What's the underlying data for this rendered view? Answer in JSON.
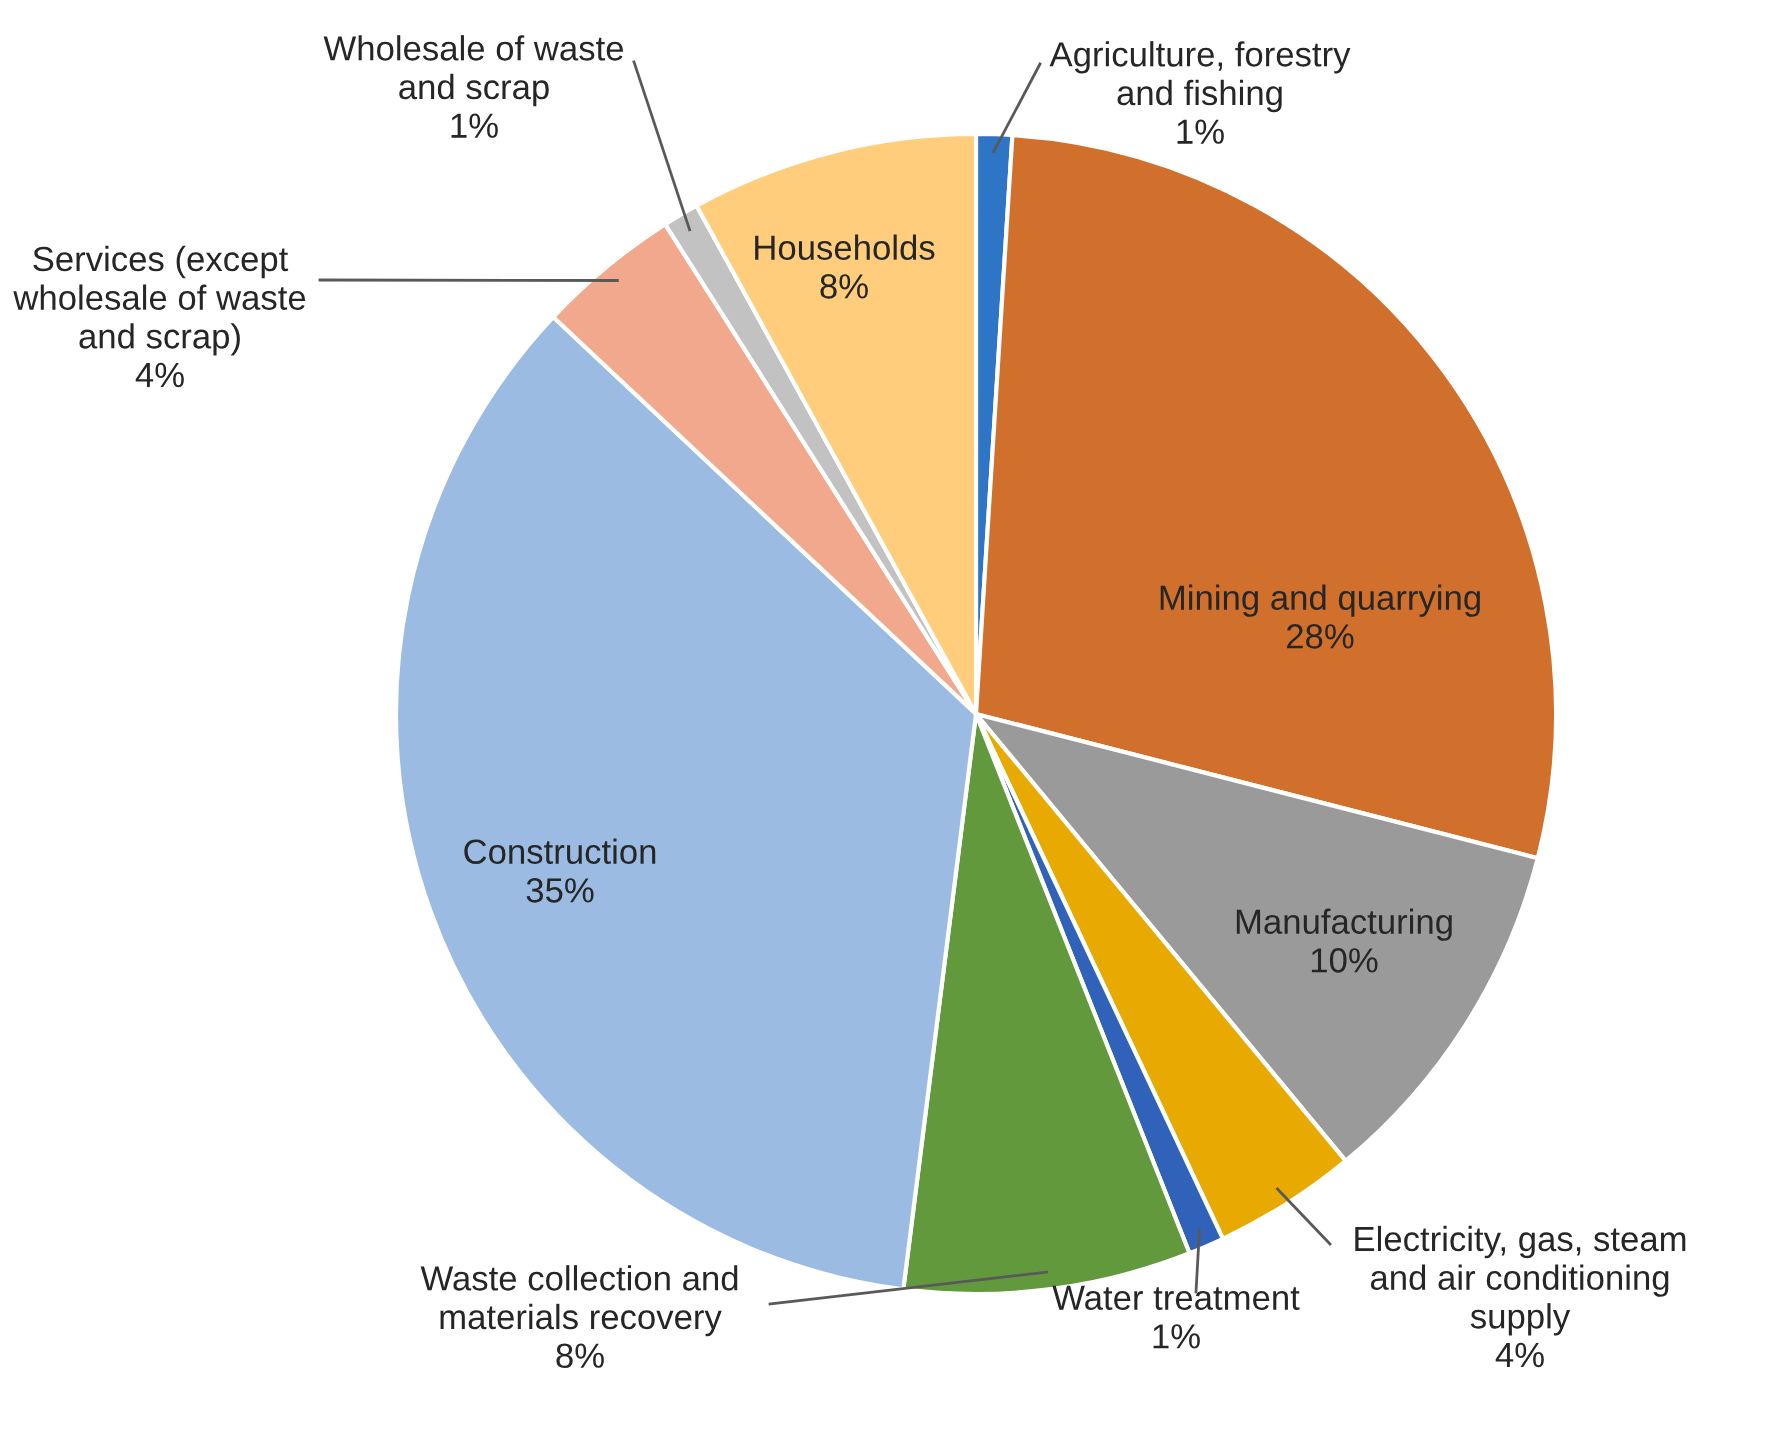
{
  "chart_data": {
    "type": "pie",
    "categories": [
      "Agriculture, forestry\nand fishing",
      "Mining and quarrying",
      "Manufacturing",
      "Electricity, gas, steam\nand air conditioning\nsupply",
      "Water treatment",
      "Waste collection and\nmaterials recovery",
      "Construction",
      "Services (except\nwholesale of waste\nand scrap)",
      "Wholesale of waste\nand scrap",
      "Households"
    ],
    "values": [
      1,
      28,
      10,
      4,
      1,
      8,
      35,
      4,
      1,
      8
    ],
    "value_labels": [
      "1%",
      "28%",
      "10%",
      "4%",
      "1%",
      "8%",
      "35%",
      "4%",
      "1%",
      "8%"
    ],
    "colors": [
      "#2e75c6",
      "#d0702c",
      "#9a9a9a",
      "#e8aa00",
      "#2f62b8",
      "#62993c",
      "#9bbbe2",
      "#f2a88c",
      "#c2c2c2",
      "#ffcd7c"
    ],
    "legend": false
  }
}
